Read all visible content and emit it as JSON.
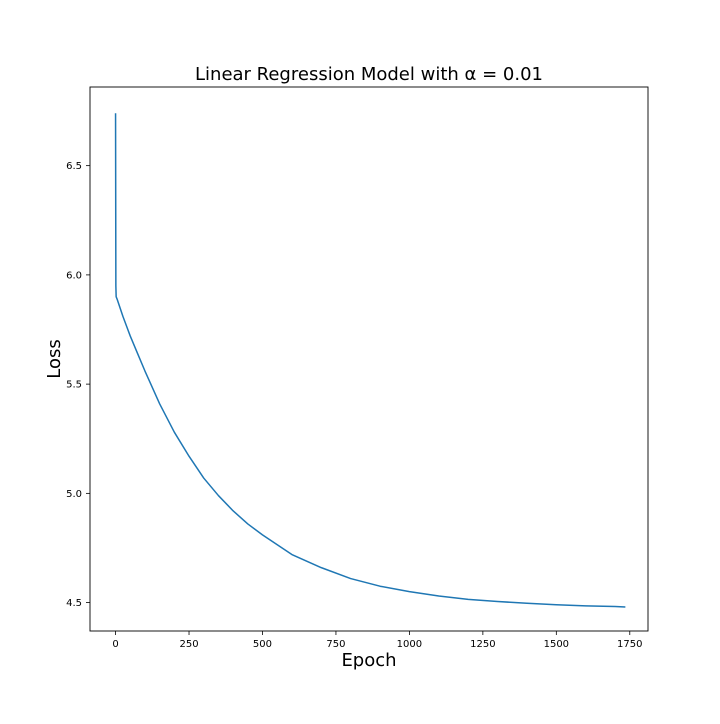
{
  "chart_data": {
    "type": "line",
    "title": "Linear Regression Model with α = 0.01",
    "xlabel": "Epoch",
    "ylabel": "Loss",
    "xlim": [
      -87,
      1812
    ],
    "ylim": [
      4.37,
      6.86
    ],
    "xticks": [
      0,
      250,
      500,
      750,
      1000,
      1250,
      1500,
      1750
    ],
    "yticks": [
      4.5,
      5.0,
      5.5,
      6.0,
      6.5
    ],
    "ytick_labels": [
      "4.5",
      "5.0",
      "5.5",
      "6.0",
      "6.5"
    ],
    "grid": false,
    "series": [
      {
        "color": "#1f77b4",
        "x": [
          0,
          1,
          2,
          5,
          10,
          25,
          50,
          75,
          100,
          150,
          200,
          250,
          300,
          350,
          400,
          450,
          500,
          600,
          700,
          800,
          900,
          1000,
          1100,
          1200,
          1300,
          1400,
          1500,
          1600,
          1700,
          1735
        ],
        "y": [
          6.74,
          5.95,
          5.9,
          5.89,
          5.87,
          5.81,
          5.72,
          5.64,
          5.56,
          5.41,
          5.28,
          5.17,
          5.07,
          4.99,
          4.92,
          4.86,
          4.81,
          4.72,
          4.66,
          4.61,
          4.575,
          4.55,
          4.53,
          4.515,
          4.505,
          4.497,
          4.49,
          4.485,
          4.482,
          4.48
        ]
      }
    ]
  }
}
